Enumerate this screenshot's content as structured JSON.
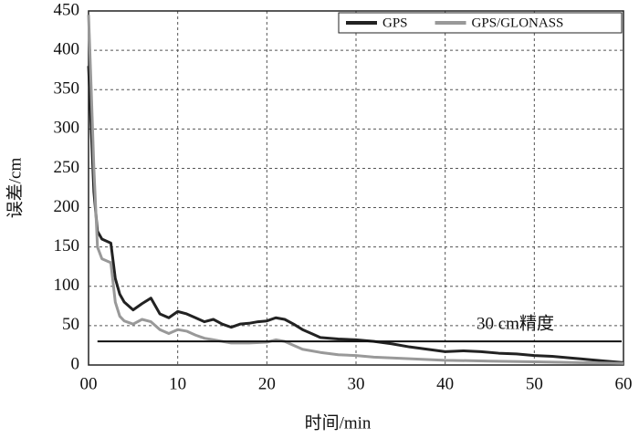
{
  "chart_data": {
    "type": "line",
    "x_label": "时间/min",
    "y_label": "误差/cm",
    "xlim": [
      0,
      60
    ],
    "ylim": [
      0,
      450
    ],
    "xticks": [
      {
        "value": 0,
        "label": "00"
      },
      10,
      20,
      30,
      40,
      50,
      60
    ],
    "yticks": [
      0,
      50,
      100,
      150,
      200,
      250,
      300,
      350,
      400,
      450
    ],
    "grid": true,
    "legend": "top-right",
    "reference_line": {
      "value": 30,
      "label": "30 cm精度",
      "color": "#111"
    },
    "series": [
      {
        "name": "GPS",
        "color": "#222222",
        "x": [
          0,
          0.3,
          0.6,
          1,
          1.5,
          2.5,
          3,
          3.5,
          4,
          5,
          6,
          7,
          8,
          9,
          10,
          11,
          12,
          13,
          14,
          15,
          16,
          17,
          18,
          19,
          20,
          21,
          22,
          23,
          24,
          25,
          26,
          28,
          30,
          32,
          34,
          36,
          38,
          40,
          42,
          44,
          46,
          48,
          50,
          52,
          54,
          56,
          58,
          60
        ],
        "values": [
          380,
          300,
          220,
          170,
          160,
          155,
          110,
          90,
          80,
          70,
          78,
          85,
          65,
          60,
          68,
          65,
          60,
          55,
          58,
          52,
          48,
          52,
          53,
          55,
          56,
          60,
          58,
          52,
          45,
          40,
          35,
          33,
          32,
          30,
          27,
          23,
          20,
          17,
          18,
          17,
          15,
          14,
          12,
          11,
          9,
          7,
          5,
          3
        ]
      },
      {
        "name": "GPS/GLONASS",
        "color": "#999999",
        "x": [
          0,
          0.3,
          0.6,
          1,
          1.5,
          2.5,
          3,
          3.5,
          4,
          5,
          6,
          7,
          8,
          9,
          10,
          11,
          12,
          13,
          14,
          15,
          16,
          18,
          20,
          21,
          22,
          23,
          24,
          26,
          28,
          30,
          32,
          34,
          36,
          38,
          40,
          45,
          50,
          55,
          60
        ],
        "values": [
          445,
          350,
          250,
          150,
          135,
          130,
          80,
          62,
          56,
          52,
          58,
          55,
          45,
          40,
          45,
          43,
          38,
          34,
          32,
          30,
          28,
          28,
          29,
          32,
          30,
          25,
          20,
          16,
          13,
          12,
          10,
          9,
          8,
          7,
          6,
          5,
          4,
          3,
          2
        ]
      }
    ]
  }
}
